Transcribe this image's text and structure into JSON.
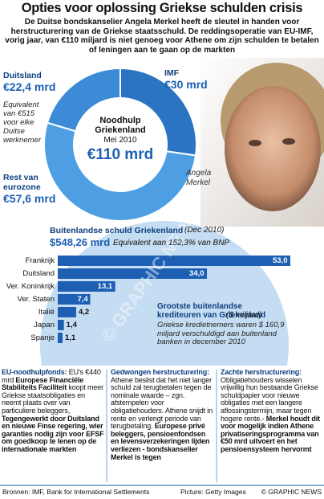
{
  "title": "Opties voor oplossing Griekse schulden crisis",
  "intro": "De Duitse bondskanselier Angela Merkel heeft de sleutel in handen voor herstructurering van de Griekse staatsschuld. De reddingsoperatie van EU-IMF, vorig jaar, van €110 miljard is niet genoeg voor Athene om zijn schulden te betalen of leningen aan te gaan op de markten",
  "photo_caption": "Angela Merkel",
  "watermark": "© GRAPHIC NEWS",
  "chart_data": [
    {
      "type": "pie",
      "center_title": "Noodhulp Griekenland",
      "center_subtitle": "Mei 2010",
      "center_value": "€110 mrd",
      "categories": [
        "Duitsland",
        "IMF",
        "Rest van eurozone"
      ],
      "values": [
        22.4,
        30,
        57.6
      ],
      "value_labels": [
        "€22,4 mrd",
        "€30 mrd",
        "€57,6 mrd"
      ],
      "colors": [
        "#3d8bd6",
        "#2a74c2",
        "#4e9ee3"
      ],
      "annotation": "Equivalent van €515 voor elke Duitse werknemer"
    },
    {
      "type": "bar",
      "orientation": "horizontal",
      "title": "Buitenlandse schuld Griekenland",
      "subtitle": "(Dec 2010)",
      "total": "$548,26 mrd",
      "total_note": "Equivalent aan 152,3% van BNP",
      "categories": [
        "Frankrijk",
        "Duitsland",
        "Ver. Koninkrijk",
        "Ver. Staten",
        "Italië",
        "Japan",
        "Spanje"
      ],
      "values": [
        53.0,
        34.0,
        13.1,
        7.4,
        4.2,
        1.4,
        1.1
      ],
      "value_labels": [
        "53,0",
        "34,0",
        "13,1",
        "7,4",
        "4,2",
        "1,4",
        "1,1"
      ],
      "color": "#1c5fb3",
      "legend_title": "Grootste buitenlandse krediteuren van Griekenland",
      "legend_unit": "($ miljard)",
      "note": "Griekse kredietnemers waren $ 160,9 miljard verschuldigd aan buitenland banken in december 2010"
    }
  ],
  "columns": [
    {
      "heading": "EU-noodhulpfonds:",
      "parts": [
        {
          "text": "EU's €440 mrd ",
          "bold": false
        },
        {
          "text": "Europese Financiële Stabiliteits Faciliteit",
          "bold": true
        },
        {
          "text": " koopt meer Griekse staatsobligaties en neemt plaats over van particuliere beleggers, ",
          "bold": false
        },
        {
          "text": "Tegengewerkt door Duitsland en nieuwe Finse regering, wier garanties nodig zijn voor EFSF om goedkoop te lenen op de internationale markten",
          "bold": true
        }
      ]
    },
    {
      "heading": "Gedwongen herstructurering:",
      "parts": [
        {
          "text": "Athene beslist dat het niet langer schuld zal terugbetalen tegen de nominale waarde – zgn. afstempelen voor obligatiehouders. Athene snijdt in rente en verlengt periode van terugbetaling. ",
          "bold": false
        },
        {
          "text": "Europese privé beleggers, pensioenfondsen en levensverzekeringen lijden verliezen - bondskanselier Merkel is tegen",
          "bold": true
        }
      ]
    },
    {
      "heading": "Zachte herstructurering:",
      "parts": [
        {
          "text": "Obligatiehouders wisselen vrijwillig hun bestaande Griekse schuldpapier voor nieuwe obligaties met een langere aflossingstermijn, maar tegen hogere rente.- ",
          "bold": false
        },
        {
          "text": "Merkel houdt dit voor mogelijk indien Athene privatiseringsprogramma van €50 mrd uitvoert en het pensioensysteem hervormt",
          "bold": true
        }
      ]
    }
  ],
  "footer": {
    "sources": "Bronnen: IMF, Bank for International Settlements",
    "picture": "Picture: Getty Images",
    "credit": "© GRAPHIC NEWS"
  }
}
